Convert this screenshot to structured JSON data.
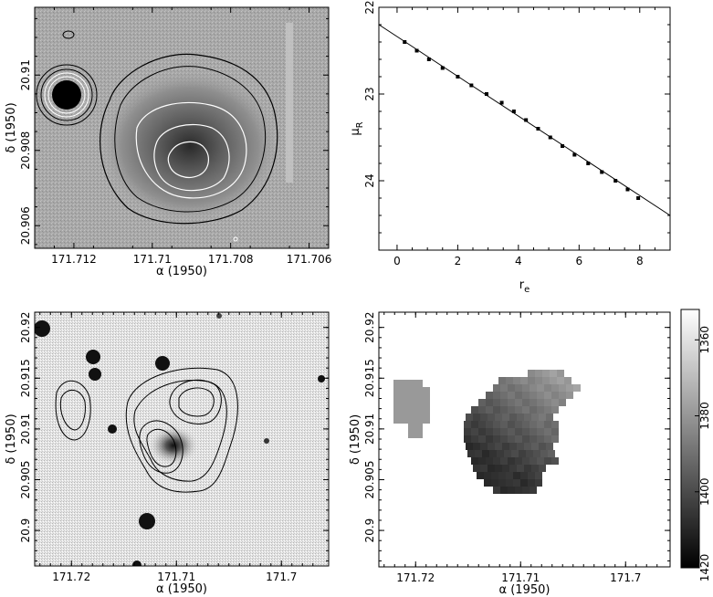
{
  "chart_data": [
    {
      "type": "heatmap",
      "panel": "contour-map-top-left",
      "xlabel": "α (1950)",
      "ylabel": "δ (1950)",
      "xticks": [
        "171.712",
        "171.71",
        "171.708",
        "171.706"
      ],
      "yticks": [
        "20.906",
        "20.908",
        "20.91"
      ],
      "xlim": [
        171.713,
        171.7055
      ],
      "ylim": [
        20.9054,
        20.9118
      ]
    },
    {
      "type": "scatter",
      "panel": "surface-brightness-profile",
      "xlabel": "r",
      "xlabel_sub": "e",
      "ylabel": "μ",
      "ylabel_sub": "R",
      "xticks": [
        "0",
        "2",
        "4",
        "6",
        "8"
      ],
      "yticks": [
        "22",
        "23",
        "24"
      ],
      "xlim": [
        -0.6,
        9
      ],
      "ylim": [
        24.8,
        22
      ],
      "x": [
        0.25,
        0.65,
        1.05,
        1.5,
        2.0,
        2.45,
        2.95,
        3.45,
        3.85,
        4.25,
        4.65,
        5.05,
        5.45,
        5.85,
        6.3,
        6.75,
        7.2,
        7.6,
        7.95
      ],
      "y": [
        22.4,
        22.5,
        22.6,
        22.7,
        22.8,
        22.9,
        23.0,
        23.1,
        23.2,
        23.3,
        23.4,
        23.5,
        23.6,
        23.7,
        23.8,
        23.9,
        24.0,
        24.1,
        24.2
      ],
      "fit_line": {
        "x": [
          -0.6,
          9
        ],
        "y": [
          22.2,
          24.4
        ]
      }
    },
    {
      "type": "heatmap",
      "panel": "optical-image-contours",
      "xlabel": "α (1950)",
      "ylabel": "δ (1950)",
      "xticks": [
        "171.72",
        "171.71",
        "171.7"
      ],
      "yticks": [
        "20.9",
        "20.905",
        "20.91",
        "20.915",
        "20.92"
      ],
      "xlim": [
        171.7235,
        171.6955
      ],
      "ylim": [
        20.8965,
        20.9215
      ]
    },
    {
      "type": "heatmap",
      "panel": "velocity-field",
      "xlabel": "α (1950)",
      "ylabel": "δ (1950)",
      "xticks": [
        "171.72",
        "171.71",
        "171.7"
      ],
      "yticks": [
        "20.9",
        "20.905",
        "20.91",
        "20.915",
        "20.92"
      ],
      "colorbar_ticks": [
        "1360",
        "1380",
        "1400",
        "1420"
      ],
      "colorbar_range": [
        1420,
        1352
      ]
    }
  ]
}
